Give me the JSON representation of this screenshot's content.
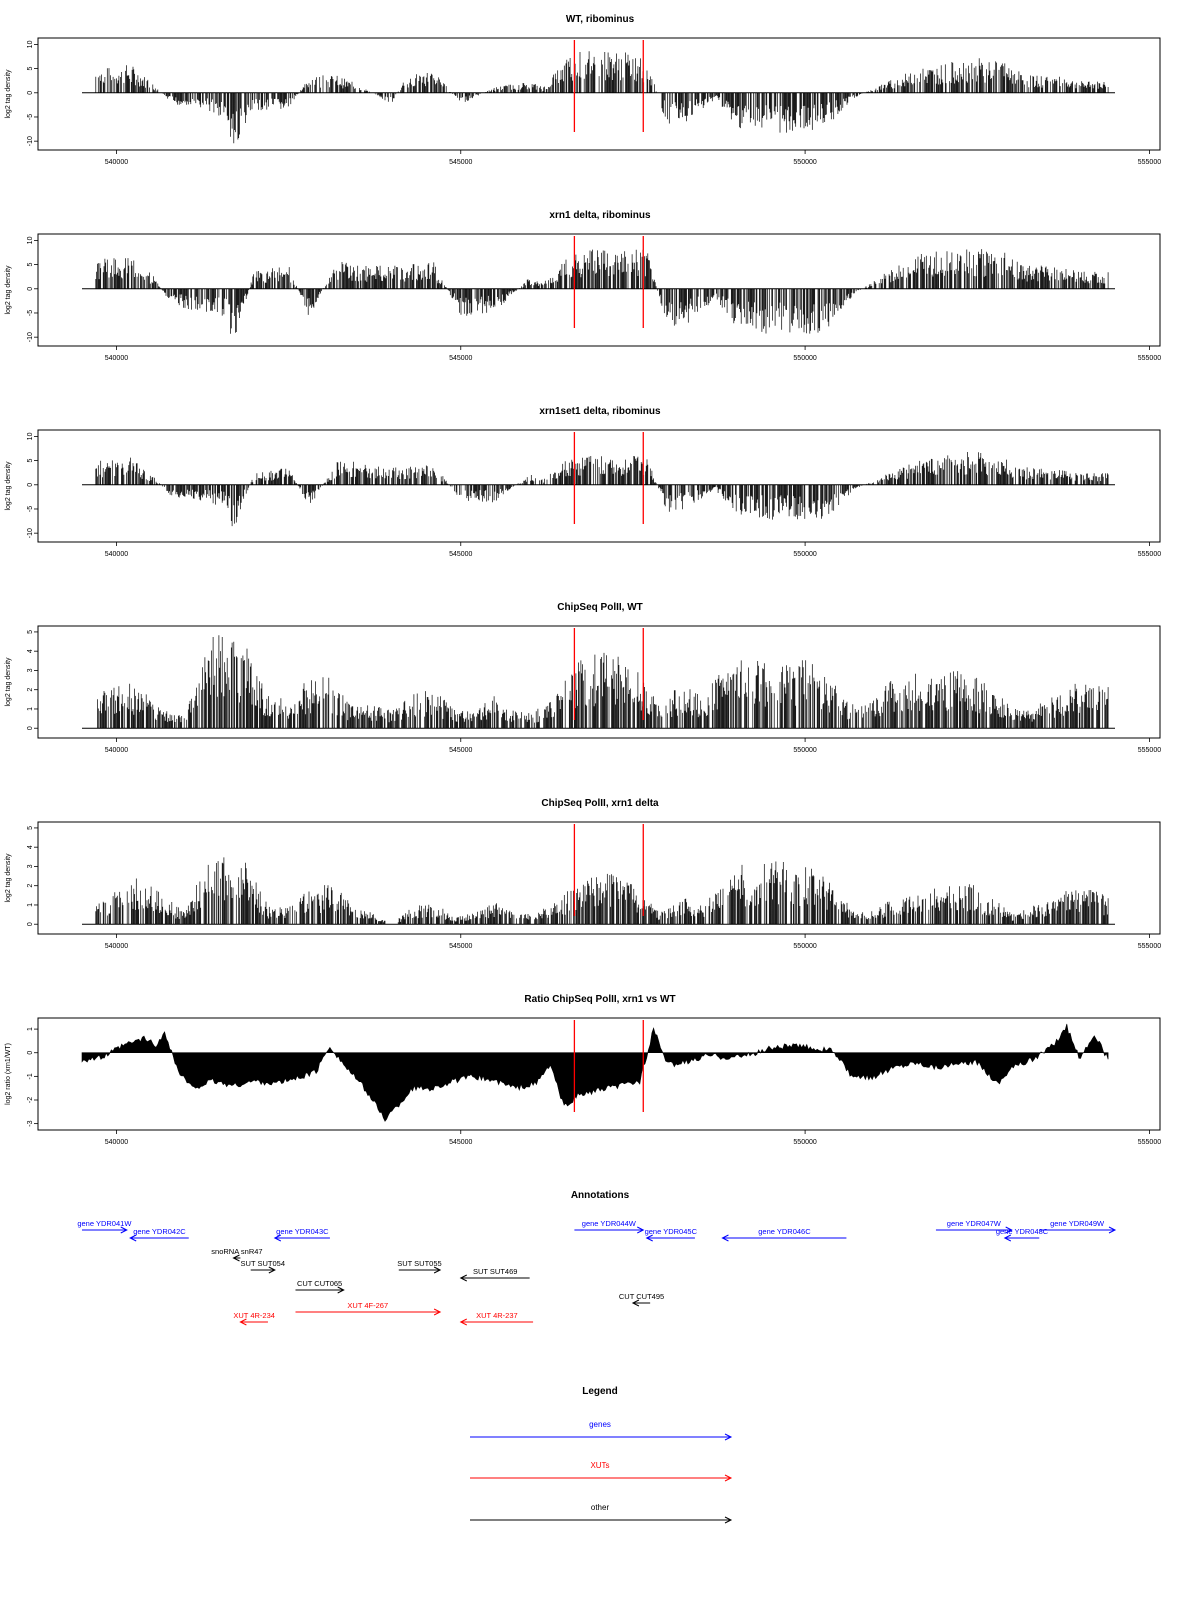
{
  "figure": {
    "x_range": [
      539500,
      554500
    ],
    "x_ticks": [
      540000,
      545000,
      550000,
      555000
    ],
    "x_tick_labels": [
      "540000",
      "545000",
      "550000",
      "555000"
    ],
    "red_line_positions": [
      546650,
      547650
    ]
  },
  "chart_data": [
    {
      "type": "bar",
      "id": "wt_ribominus",
      "title": "WT, ribominus",
      "ylabel": "log2 tag density",
      "ylim": [
        -11,
        10.5
      ],
      "y_ticks": [
        10,
        5,
        0,
        -5,
        -10
      ],
      "y_tick_labels": [
        "10",
        "5",
        "0",
        "-5",
        "-10"
      ],
      "red_lines": [
        546650,
        547650
      ],
      "series": [
        {
          "x": [
            539700,
            540200,
            540500,
            540800,
            541300,
            541600,
            541700,
            542000,
            542500,
            542800,
            543200,
            543500,
            544000,
            544200,
            544600,
            545000,
            545500,
            546000,
            546200,
            546600,
            547000,
            547400,
            547700,
            548000,
            548300,
            548700,
            549000,
            549500,
            550000,
            550300,
            550700,
            551200,
            551600,
            552000,
            552400,
            552800,
            553200,
            553600,
            554000,
            554400
          ],
          "values": [
            4,
            5,
            2,
            -2,
            -3,
            -5,
            -10,
            -3,
            -3,
            3,
            3,
            1.5,
            -2,
            3,
            4,
            -2,
            1,
            2,
            1,
            7,
            7.5,
            7,
            6,
            -6,
            -5,
            -1,
            -6,
            -7,
            -7,
            -6,
            -1,
            2,
            4,
            5,
            6,
            6,
            3,
            3,
            2,
            2
          ]
        }
      ]
    },
    {
      "type": "bar",
      "id": "xrn1_ribominus",
      "title": "xrn1 delta, ribominus",
      "ylabel": "log2 tag density",
      "ylim": [
        -11,
        10.5
      ],
      "y_ticks": [
        10,
        5,
        0,
        -5,
        -10
      ],
      "y_tick_labels": [
        "10",
        "5",
        "0",
        "-5",
        "-10"
      ],
      "red_lines": [
        546650,
        547650
      ],
      "series": [
        {
          "x": [
            539700,
            540200,
            540500,
            540800,
            541300,
            541600,
            541700,
            542000,
            542500,
            542800,
            543200,
            543500,
            544000,
            544200,
            544600,
            545000,
            545500,
            546000,
            546200,
            546600,
            547000,
            547400,
            547700,
            548000,
            548300,
            548700,
            549000,
            549500,
            550000,
            550300,
            550700,
            551200,
            551600,
            552000,
            552400,
            552800,
            553200,
            553600,
            554000,
            554400
          ],
          "values": [
            5,
            6,
            3,
            -3,
            -4,
            -5,
            -10,
            3,
            4,
            -5,
            5,
            4,
            4,
            4,
            5,
            -5,
            -4,
            2,
            1,
            6.5,
            7,
            6.5,
            7,
            -7,
            -6,
            -2,
            -7,
            -8,
            -8,
            -8,
            -1,
            3,
            6,
            7,
            7,
            7,
            4,
            4,
            3,
            3
          ]
        }
      ]
    },
    {
      "type": "bar",
      "id": "xrn1set1_ribominus",
      "title": "xrn1set1 delta, ribominus",
      "ylabel": "log2 tag density",
      "ylim": [
        -11,
        10.5
      ],
      "y_ticks": [
        10,
        5,
        0,
        -5,
        -10
      ],
      "y_tick_labels": [
        "10",
        "5",
        "0",
        "-5",
        "-10"
      ],
      "red_lines": [
        546650,
        547650
      ],
      "series": [
        {
          "x": [
            539700,
            540200,
            540500,
            540800,
            541300,
            541600,
            541700,
            542000,
            542500,
            542800,
            543200,
            543500,
            544000,
            544200,
            544600,
            545000,
            545500,
            546000,
            546200,
            546600,
            547000,
            547400,
            547700,
            548000,
            548300,
            548700,
            549000,
            549500,
            550000,
            550300,
            550700,
            551200,
            551600,
            552000,
            552400,
            552800,
            553200,
            553600,
            554000,
            554400
          ],
          "values": [
            4,
            5,
            2,
            -2,
            -3,
            -4,
            -8,
            2,
            3,
            -4,
            4,
            4,
            3,
            3,
            4,
            -3,
            -3,
            2,
            1,
            5,
            5,
            5,
            5,
            -5,
            -4,
            -1,
            -5,
            -6,
            -6,
            -6,
            -1,
            2,
            4,
            5,
            6,
            5,
            3,
            3,
            2,
            2
          ]
        }
      ]
    },
    {
      "type": "bar",
      "id": "chipseq_wt",
      "title": "ChipSeq PolII, WT",
      "ylabel": "log2 tag density",
      "ylim": [
        -0.3,
        5.1
      ],
      "y_ticks": [
        0,
        1,
        2,
        3,
        4,
        5
      ],
      "y_tick_labels": [
        "0",
        "1",
        "2",
        "3",
        "4",
        "5"
      ],
      "red_lines": [
        546650,
        547650
      ],
      "series": [
        {
          "x": [
            539700,
            540000,
            540300,
            540600,
            541000,
            541300,
            541600,
            541900,
            542200,
            542500,
            542800,
            543100,
            543400,
            543700,
            544000,
            544300,
            544600,
            544900,
            545200,
            545500,
            545800,
            546100,
            546400,
            546700,
            547000,
            547300,
            547600,
            547900,
            548200,
            548500,
            548800,
            549100,
            549400,
            549700,
            550000,
            550300,
            550600,
            550900,
            551200,
            551500,
            551800,
            552100,
            552400,
            552700,
            553000,
            553300,
            553600,
            553900,
            554200,
            554400
          ],
          "values": [
            1.5,
            1.8,
            2,
            1,
            0.5,
            3.8,
            4.3,
            3.5,
            1.5,
            1.2,
            2.2,
            2.3,
            1,
            1,
            0.8,
            1.5,
            1.8,
            0.8,
            0.8,
            1.5,
            0.8,
            0.8,
            1.5,
            3,
            3.3,
            3.2,
            2.5,
            1,
            2,
            1.5,
            2.5,
            3,
            3,
            3,
            3,
            2.5,
            1.2,
            1,
            2,
            2.5,
            2.5,
            2.5,
            2.5,
            1.8,
            1,
            0.8,
            1.5,
            2,
            2,
            2
          ]
        }
      ]
    },
    {
      "type": "bar",
      "id": "chipseq_xrn1",
      "title": "ChipSeq PolII, xrn1 delta",
      "ylabel": "log2 tag density",
      "ylim": [
        -0.3,
        5.1
      ],
      "y_ticks": [
        0,
        1,
        2,
        3,
        4,
        5
      ],
      "y_tick_labels": [
        "0",
        "1",
        "2",
        "3",
        "4",
        "5"
      ],
      "red_lines": [
        546650,
        547650
      ],
      "series": [
        {
          "x": [
            539700,
            540000,
            540300,
            540600,
            541000,
            541300,
            541600,
            541900,
            542200,
            542500,
            542800,
            543100,
            543400,
            543700,
            544000,
            544300,
            544600,
            544900,
            545200,
            545500,
            545800,
            546100,
            546400,
            546700,
            547000,
            547300,
            547600,
            547900,
            548200,
            548500,
            548800,
            549100,
            549400,
            549700,
            550000,
            550300,
            550600,
            550900,
            551200,
            551500,
            551800,
            552100,
            552400,
            552700,
            553000,
            553300,
            553600,
            553900,
            554200,
            554400
          ],
          "values": [
            0.8,
            1.5,
            2,
            1.5,
            0.5,
            2.8,
            3,
            2.8,
            0.8,
            0.8,
            1.5,
            1.8,
            1,
            0.5,
            0,
            0.8,
            1,
            0.3,
            0.5,
            1,
            0.5,
            0.5,
            1,
            2,
            2.2,
            2.2,
            1.5,
            0.5,
            1.2,
            0.8,
            2,
            2.6,
            2.8,
            2.8,
            2.6,
            2,
            1,
            0.5,
            1,
            1.2,
            1.6,
            1.8,
            1.8,
            1.2,
            0.5,
            0.8,
            1.2,
            1.6,
            1.5,
            1.2
          ]
        }
      ]
    },
    {
      "type": "area",
      "id": "ratio_chipseq",
      "title": "Ratio ChipSeq PolII, xrn1 vs WT",
      "ylabel": "log2 ratio (xrn1/WT)",
      "ylim": [
        -3.1,
        1.3
      ],
      "y_ticks": [
        1,
        0,
        -1,
        -2,
        -3
      ],
      "y_tick_labels": [
        "1",
        "0",
        "-1",
        "-2",
        "-3"
      ],
      "red_lines": [
        546650,
        547650
      ],
      "series": [
        {
          "x": [
            539500,
            539800,
            540100,
            540400,
            540600,
            540700,
            540900,
            541100,
            541400,
            541700,
            542000,
            542300,
            542600,
            542900,
            543100,
            543300,
            543600,
            543900,
            544100,
            544300,
            544600,
            544900,
            545200,
            545500,
            545800,
            546100,
            546300,
            546500,
            546700,
            547000,
            547300,
            547600,
            547800,
            548000,
            548300,
            548600,
            548900,
            549200,
            549500,
            549800,
            550100,
            550400,
            550700,
            551000,
            551300,
            551600,
            551900,
            552200,
            552500,
            552800,
            553000,
            553300,
            553600,
            553800,
            554000,
            554200,
            554400
          ],
          "values": [
            -0.3,
            -0.2,
            0.3,
            0.6,
            0.3,
            0.9,
            -0.8,
            -1.5,
            -1.2,
            -1.4,
            -1.2,
            -1.3,
            -1.1,
            -0.8,
            0.3,
            -0.5,
            -1.5,
            -2.8,
            -2.2,
            -1.5,
            -1.5,
            -1.2,
            -1.0,
            -1.2,
            -1.5,
            -1.3,
            -0.5,
            -2.3,
            -1.8,
            -1.6,
            -1.4,
            -1.2,
            1.0,
            -0.5,
            -0.4,
            -0.1,
            -0.2,
            -0.1,
            0.2,
            0.3,
            0.2,
            0.1,
            -1.1,
            -1.0,
            -0.6,
            -0.4,
            -0.6,
            -0.5,
            -0.4,
            -1.3,
            -0.6,
            -0.3,
            0.3,
            1.1,
            -0.3,
            0.8,
            -0.3
          ]
        }
      ]
    }
  ],
  "annotations": {
    "title": "Annotations",
    "features": [
      {
        "label": "gene YDR041W",
        "start": 539500,
        "end": 540150,
        "strand": "+",
        "row": 0,
        "color": "#0000ff"
      },
      {
        "label": "gene YDR042C",
        "start": 540200,
        "end": 541050,
        "strand": "-",
        "row": 1,
        "color": "#0000ff"
      },
      {
        "label": "gene YDR043C",
        "start": 542300,
        "end": 543100,
        "strand": "-",
        "row": 1,
        "color": "#0000ff"
      },
      {
        "label": "gene YDR044W",
        "start": 546650,
        "end": 547650,
        "strand": "+",
        "row": 0,
        "color": "#0000ff"
      },
      {
        "label": "gene YDR045C",
        "start": 547700,
        "end": 548400,
        "strand": "-",
        "row": 1,
        "color": "#0000ff"
      },
      {
        "label": "gene YDR046C",
        "start": 548800,
        "end": 550600,
        "strand": "-",
        "row": 1,
        "color": "#0000ff"
      },
      {
        "label": "gene YDR047W",
        "start": 551900,
        "end": 553000,
        "strand": "+",
        "row": 0,
        "color": "#0000ff"
      },
      {
        "label": "gene YDR048C",
        "start": 552900,
        "end": 553400,
        "strand": "-",
        "row": 1,
        "color": "#0000ff"
      },
      {
        "label": "gene YDR049W",
        "start": 553400,
        "end": 554500,
        "strand": "+",
        "row": 0,
        "color": "#0000ff"
      },
      {
        "label": "snoRNA snR47",
        "start": 541700,
        "end": 541800,
        "strand": "-",
        "row": 2,
        "color": "#000000"
      },
      {
        "label": "SUT SUT054",
        "start": 541950,
        "end": 542300,
        "strand": "+",
        "row": 3,
        "color": "#000000"
      },
      {
        "label": "SUT SUT055",
        "start": 544100,
        "end": 544700,
        "strand": "+",
        "row": 3,
        "color": "#000000"
      },
      {
        "label": "SUT SUT469",
        "start": 545000,
        "end": 546000,
        "strand": "-",
        "row": 4,
        "color": "#000000"
      },
      {
        "label": "CUT CUT065",
        "start": 542600,
        "end": 543300,
        "strand": "+",
        "row": 5,
        "color": "#000000"
      },
      {
        "label": "CUT CUT495",
        "start": 547500,
        "end": 547750,
        "strand": "-",
        "row": 6,
        "color": "#000000"
      },
      {
        "label": "XUT 4F-267",
        "start": 542600,
        "end": 544700,
        "strand": "+",
        "row": 7,
        "color": "#ff0000"
      },
      {
        "label": "XUT 4R-234",
        "start": 541800,
        "end": 542200,
        "strand": "-",
        "row": 8,
        "color": "#ff0000"
      },
      {
        "label": "XUT 4R-237",
        "start": 545000,
        "end": 546050,
        "strand": "-",
        "row": 8,
        "color": "#ff0000"
      }
    ]
  },
  "legend": {
    "title": "Legend",
    "items": [
      {
        "label": "genes",
        "color": "#0000ff"
      },
      {
        "label": "XUTs",
        "color": "#ff0000"
      },
      {
        "label": "other",
        "color": "#000000"
      }
    ]
  }
}
